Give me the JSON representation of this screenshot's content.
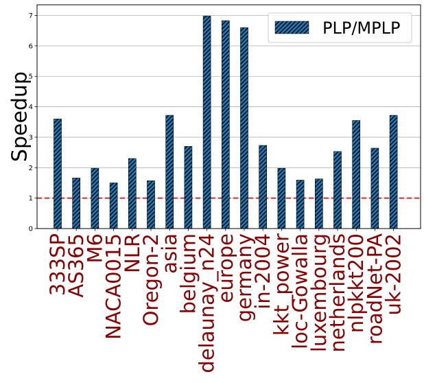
{
  "chart_data": {
    "type": "bar",
    "ylabel": "Speedup",
    "ylim": [
      0,
      7.35
    ],
    "yticks": [
      0,
      1,
      2,
      3,
      4,
      5,
      6,
      7
    ],
    "grid": "horizontal",
    "legend": {
      "placement": "top-right",
      "entries": [
        "PLP/MPLP"
      ]
    },
    "bar_color": "#1f77b4",
    "hatch": "diagonal",
    "reference_line": {
      "y": 1,
      "color": "#d62728",
      "style": "dashed"
    },
    "categories": [
      "333SP",
      "AS365",
      "M6",
      "NACA0015",
      "NLR",
      "Oregon-2",
      "asia",
      "belgium",
      "delaunay_n24",
      "europe",
      "germany",
      "in-2004",
      "kkt_power",
      "loc-Gowalla",
      "luxembourg",
      "netherlands",
      "nlpkkt200",
      "roadNet-PA",
      "uk-2002"
    ],
    "series": [
      {
        "name": "PLP/MPLP",
        "values": [
          3.6,
          1.66,
          1.98,
          1.5,
          2.3,
          1.57,
          3.72,
          2.7,
          6.98,
          6.83,
          6.6,
          2.73,
          1.98,
          1.59,
          1.63,
          2.53,
          3.55,
          2.64,
          3.72
        ]
      }
    ]
  }
}
